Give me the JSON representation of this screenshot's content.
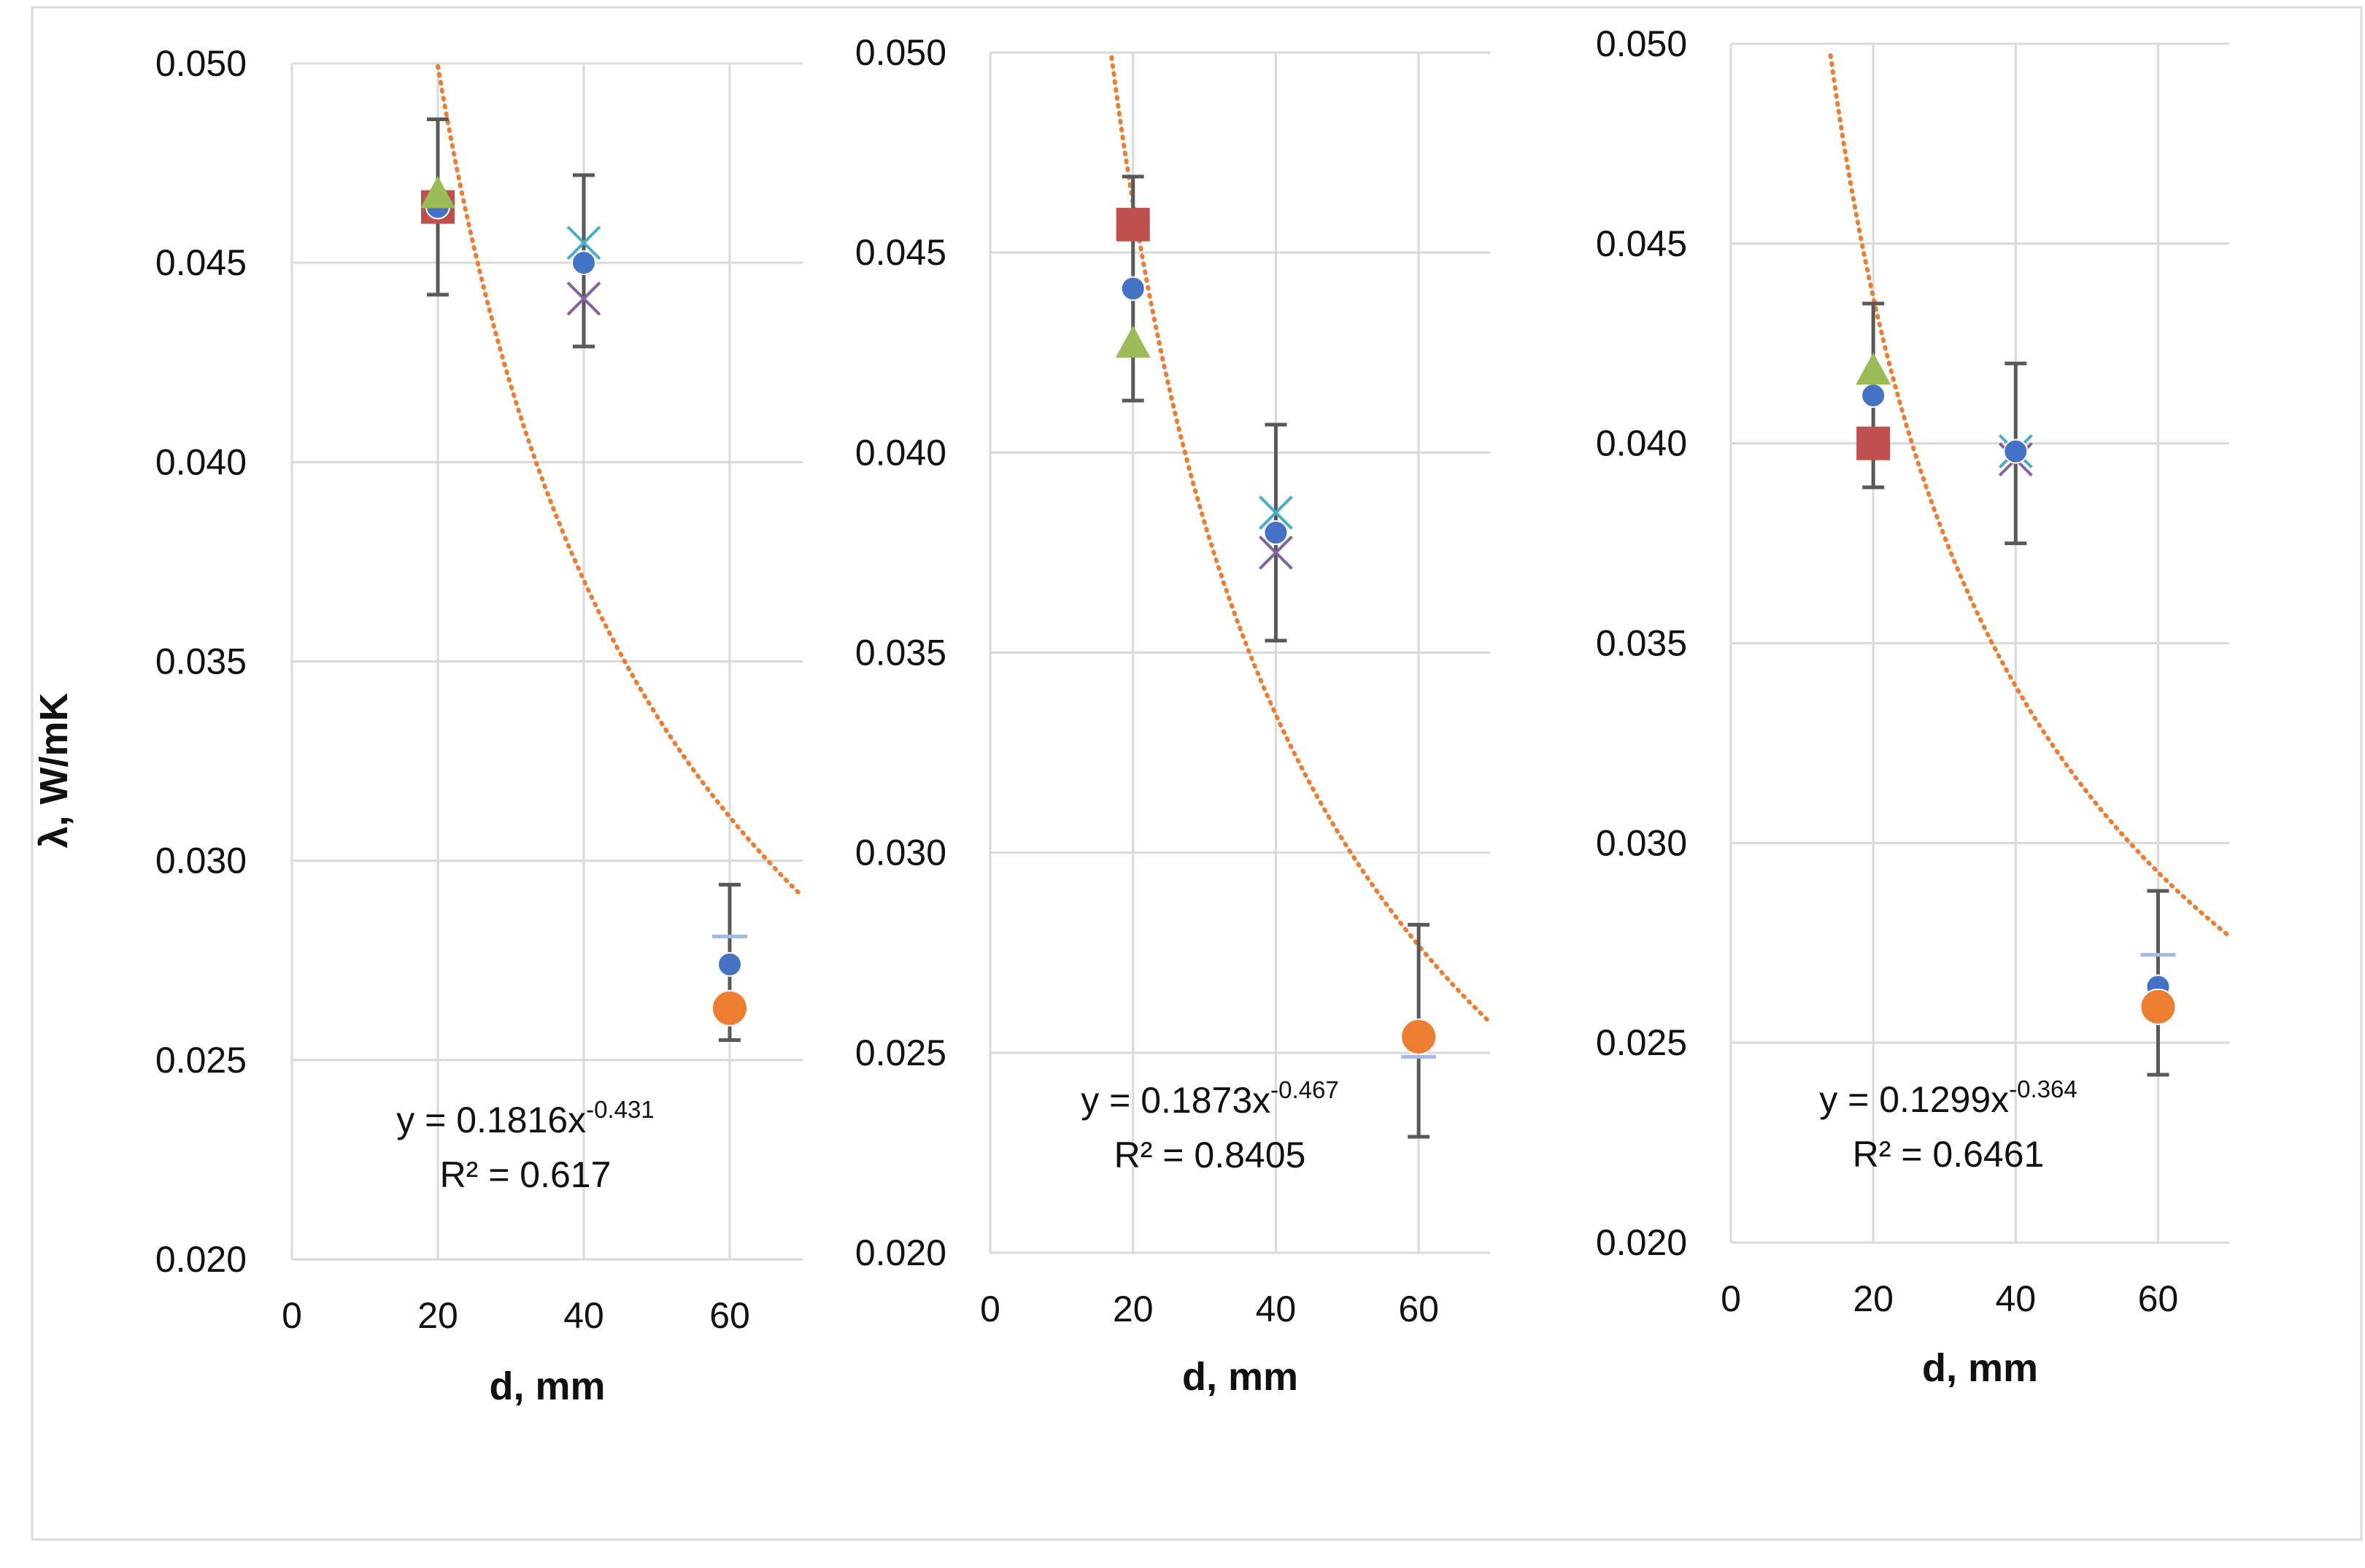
{
  "chart_data": [
    {
      "type": "scatter",
      "panel": "left",
      "xlabel": "d, mm",
      "ylabel": "λ, W/mK",
      "xlim": [
        0,
        70
      ],
      "ylim": [
        0.02,
        0.05
      ],
      "xticks": [
        "0",
        "20",
        "40",
        "60"
      ],
      "yticks": [
        "0.020",
        "0.025",
        "0.030",
        "0.035",
        "0.040",
        "0.045",
        "0.050"
      ],
      "series": [
        {
          "name": "mean",
          "marker": "circle-small",
          "color": "#4472c4",
          "points": [
            {
              "x": 20,
              "y": 0.0464
            },
            {
              "x": 40,
              "y": 0.045
            },
            {
              "x": 60,
              "y": 0.0274
            }
          ]
        },
        {
          "name": "series-square",
          "marker": "square",
          "color": "#c0504d",
          "points": [
            {
              "x": 20,
              "y": 0.0464
            }
          ]
        },
        {
          "name": "series-triangle",
          "marker": "triangle",
          "color": "#9bbb59",
          "points": [
            {
              "x": 20,
              "y": 0.0467
            }
          ]
        },
        {
          "name": "series-x-cyan",
          "marker": "x",
          "color": "#4bacc6",
          "points": [
            {
              "x": 40,
              "y": 0.0455
            }
          ]
        },
        {
          "name": "series-x-purple",
          "marker": "x",
          "color": "#8064a2",
          "points": [
            {
              "x": 40,
              "y": 0.0441
            }
          ]
        },
        {
          "name": "series-dash",
          "marker": "dash",
          "color": "#a6b8e0",
          "points": [
            {
              "x": 60,
              "y": 0.0281
            }
          ]
        },
        {
          "name": "series-orange",
          "marker": "circle-large",
          "color": "#ed7d31",
          "points": [
            {
              "x": 60,
              "y": 0.0263
            }
          ]
        }
      ],
      "error_bars": [
        {
          "x": 20,
          "low": 0.0442,
          "high": 0.0486
        },
        {
          "x": 40,
          "low": 0.0429,
          "high": 0.0472
        },
        {
          "x": 60,
          "low": 0.0255,
          "high": 0.0294
        }
      ],
      "trendline": {
        "type": "power",
        "a": 0.1816,
        "b": -0.431,
        "x_from": 20,
        "x_to": 70,
        "color": "#ed7d31"
      },
      "equation": {
        "prefix": "y = 0.1816x",
        "exponent": "-0.431",
        "r2": "R² = 0.617"
      }
    },
    {
      "type": "scatter",
      "panel": "middle",
      "xlabel": "d, mm",
      "xlim": [
        0,
        70
      ],
      "ylim": [
        0.02,
        0.05
      ],
      "xticks": [
        "0",
        "20",
        "40",
        "60"
      ],
      "yticks": [
        "0.020",
        "0.025",
        "0.030",
        "0.035",
        "0.040",
        "0.045",
        "0.050"
      ],
      "series": [
        {
          "name": "mean",
          "marker": "circle-small",
          "color": "#4472c4",
          "points": [
            {
              "x": 20,
              "y": 0.0441
            },
            {
              "x": 40,
              "y": 0.038
            }
          ]
        },
        {
          "name": "series-square",
          "marker": "square",
          "color": "#c0504d",
          "points": [
            {
              "x": 20,
              "y": 0.0457
            }
          ]
        },
        {
          "name": "series-triangle",
          "marker": "triangle",
          "color": "#9bbb59",
          "points": [
            {
              "x": 20,
              "y": 0.0427
            }
          ]
        },
        {
          "name": "series-x-cyan",
          "marker": "x",
          "color": "#4bacc6",
          "points": [
            {
              "x": 40,
              "y": 0.0385
            }
          ]
        },
        {
          "name": "series-x-purple",
          "marker": "x",
          "color": "#8064a2",
          "points": [
            {
              "x": 40,
              "y": 0.0375
            }
          ]
        },
        {
          "name": "series-dash",
          "marker": "dash",
          "color": "#a6b8e0",
          "points": [
            {
              "x": 60,
              "y": 0.0249
            }
          ]
        },
        {
          "name": "series-orange",
          "marker": "circle-large",
          "color": "#ed7d31",
          "points": [
            {
              "x": 60,
              "y": 0.0254
            }
          ]
        }
      ],
      "error_bars": [
        {
          "x": 20,
          "low": 0.0413,
          "high": 0.0469
        },
        {
          "x": 40,
          "low": 0.0353,
          "high": 0.0407
        },
        {
          "x": 60,
          "low": 0.0229,
          "high": 0.0282
        }
      ],
      "trendline": {
        "type": "power",
        "a": 0.1873,
        "b": -0.467,
        "x_from": 17,
        "x_to": 70,
        "color": "#ed7d31"
      },
      "equation": {
        "prefix": "y = 0.1873x",
        "exponent": "-0.467",
        "r2": "R² = 0.8405"
      }
    },
    {
      "type": "scatter",
      "panel": "right",
      "xlabel": "d, mm",
      "xlim": [
        0,
        70
      ],
      "ylim": [
        0.02,
        0.05
      ],
      "xticks": [
        "0",
        "20",
        "40",
        "60"
      ],
      "yticks": [
        "0.020",
        "0.025",
        "0.030",
        "0.035",
        "0.040",
        "0.045",
        "0.050"
      ],
      "series": [
        {
          "name": "mean",
          "marker": "circle-small",
          "color": "#4472c4",
          "points": [
            {
              "x": 20,
              "y": 0.0412
            },
            {
              "x": 40,
              "y": 0.0398
            },
            {
              "x": 60,
              "y": 0.0264
            }
          ]
        },
        {
          "name": "series-square",
          "marker": "square",
          "color": "#c0504d",
          "points": [
            {
              "x": 20,
              "y": 0.04
            }
          ]
        },
        {
          "name": "series-triangle",
          "marker": "triangle",
          "color": "#9bbb59",
          "points": [
            {
              "x": 20,
              "y": 0.0418
            }
          ]
        },
        {
          "name": "series-x-cyan",
          "marker": "x",
          "color": "#4bacc6",
          "points": [
            {
              "x": 40,
              "y": 0.0398
            }
          ]
        },
        {
          "name": "series-x-purple",
          "marker": "x",
          "color": "#8064a2",
          "points": [
            {
              "x": 40,
              "y": 0.0396
            }
          ]
        },
        {
          "name": "series-dash",
          "marker": "dash",
          "color": "#a6b8e0",
          "points": [
            {
              "x": 60,
              "y": 0.0272
            }
          ]
        },
        {
          "name": "series-orange",
          "marker": "circle-large",
          "color": "#ed7d31",
          "points": [
            {
              "x": 60,
              "y": 0.0259
            }
          ]
        }
      ],
      "error_bars": [
        {
          "x": 20,
          "low": 0.0389,
          "high": 0.0435
        },
        {
          "x": 40,
          "low": 0.0375,
          "high": 0.042
        },
        {
          "x": 60,
          "low": 0.0242,
          "high": 0.0288
        }
      ],
      "trendline": {
        "type": "power",
        "a": 0.1299,
        "b": -0.364,
        "x_from": 14,
        "x_to": 70,
        "color": "#ed7d31"
      },
      "equation": {
        "prefix": "y = 0.1299x",
        "exponent": "-0.364",
        "r2": "R² = 0.6461"
      }
    }
  ]
}
